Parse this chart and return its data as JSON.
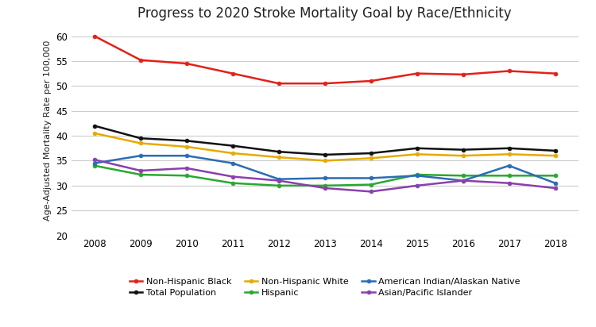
{
  "title": "Progress to 2020 Stroke Mortality Goal by Race/Ethnicity",
  "ylabel": "Age-Adjusted Mortality Rate per 100,000",
  "years": [
    2008,
    2009,
    2010,
    2011,
    2012,
    2013,
    2014,
    2015,
    2016,
    2017,
    2018
  ],
  "series": {
    "Non-Hispanic Black": {
      "values": [
        60.0,
        55.2,
        54.5,
        52.5,
        50.5,
        50.5,
        51.0,
        52.5,
        52.3,
        53.0,
        52.5
      ],
      "color": "#e32119",
      "marker": "o",
      "linewidth": 1.8
    },
    "Total Population": {
      "values": [
        42.0,
        39.5,
        39.0,
        38.0,
        36.8,
        36.2,
        36.5,
        37.5,
        37.2,
        37.5,
        37.0
      ],
      "color": "#111111",
      "marker": "o",
      "linewidth": 1.8
    },
    "Non-Hispanic White": {
      "values": [
        40.5,
        38.5,
        37.8,
        36.5,
        35.7,
        35.0,
        35.5,
        36.3,
        36.0,
        36.3,
        36.0
      ],
      "color": "#e6aa00",
      "marker": "o",
      "linewidth": 1.8
    },
    "Hispanic": {
      "values": [
        34.0,
        32.2,
        32.0,
        30.5,
        30.0,
        30.0,
        30.2,
        32.2,
        32.0,
        32.0,
        32.0
      ],
      "color": "#2aa830",
      "marker": "o",
      "linewidth": 1.8
    },
    "American Indian/Alaskan Native": {
      "values": [
        34.5,
        36.0,
        36.0,
        34.5,
        31.3,
        31.5,
        31.5,
        32.0,
        31.0,
        34.0,
        30.5
      ],
      "color": "#2a6db5",
      "marker": "o",
      "linewidth": 1.8
    },
    "Asian/Pacific Islander": {
      "values": [
        35.2,
        33.0,
        33.5,
        31.8,
        31.0,
        29.5,
        28.8,
        30.0,
        31.0,
        30.5,
        29.5
      ],
      "color": "#8b3fad",
      "marker": "o",
      "linewidth": 1.8
    }
  },
  "ylim": [
    20,
    62
  ],
  "yticks": [
    20,
    25,
    30,
    35,
    40,
    45,
    50,
    55,
    60
  ],
  "legend_order": [
    "Non-Hispanic Black",
    "Total Population",
    "Non-Hispanic White",
    "Hispanic",
    "American Indian/Alaskan Native",
    "Asian/Pacific Islander"
  ],
  "background_color": "#ffffff",
  "grid_color": "#cccccc"
}
